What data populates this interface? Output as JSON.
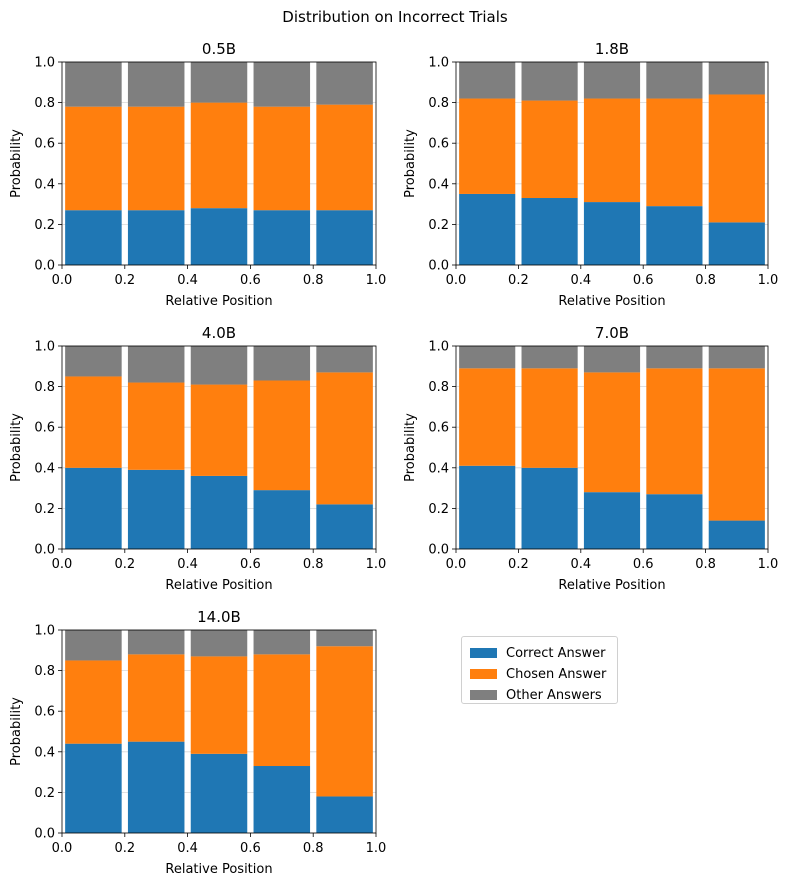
{
  "suptitle": "Distribution on Incorrect Trials",
  "colors": {
    "correct": "#1f77b4",
    "chosen": "#ff7f0e",
    "other": "#7f7f7f"
  },
  "legend": {
    "placement": "right of bottom-left panel",
    "entries": [
      {
        "label": "Correct Answer",
        "color_key": "correct"
      },
      {
        "label": "Chosen Answer",
        "color_key": "chosen"
      },
      {
        "label": "Other Answers",
        "color_key": "other"
      }
    ]
  },
  "chart_data": [
    {
      "type": "bar",
      "stacked": true,
      "title": "0.5B",
      "xlabel": "Relative Position",
      "ylabel": "Probability",
      "xlim": [
        0.0,
        1.0
      ],
      "ylim": [
        0.0,
        1.0
      ],
      "xticks": [
        "0.0",
        "0.2",
        "0.4",
        "0.6",
        "0.8",
        "1.0"
      ],
      "yticks": [
        "0.0",
        "0.2",
        "0.4",
        "0.6",
        "0.8",
        "1.0"
      ],
      "grid": "horizontal",
      "x": [
        0.1,
        0.3,
        0.5,
        0.7,
        0.9
      ],
      "series": [
        {
          "name": "Correct Answer",
          "values": [
            0.27,
            0.27,
            0.28,
            0.27,
            0.27
          ]
        },
        {
          "name": "Chosen Answer",
          "values": [
            0.51,
            0.51,
            0.52,
            0.51,
            0.52
          ]
        },
        {
          "name": "Other Answers",
          "values": [
            0.22,
            0.22,
            0.2,
            0.22,
            0.21
          ]
        }
      ]
    },
    {
      "type": "bar",
      "stacked": true,
      "title": "1.8B",
      "xlabel": "Relative Position",
      "ylabel": "Probability",
      "xlim": [
        0.0,
        1.0
      ],
      "ylim": [
        0.0,
        1.0
      ],
      "xticks": [
        "0.0",
        "0.2",
        "0.4",
        "0.6",
        "0.8",
        "1.0"
      ],
      "yticks": [
        "0.0",
        "0.2",
        "0.4",
        "0.6",
        "0.8",
        "1.0"
      ],
      "grid": "horizontal",
      "x": [
        0.1,
        0.3,
        0.5,
        0.7,
        0.9
      ],
      "series": [
        {
          "name": "Correct Answer",
          "values": [
            0.35,
            0.33,
            0.31,
            0.29,
            0.21
          ]
        },
        {
          "name": "Chosen Answer",
          "values": [
            0.47,
            0.48,
            0.51,
            0.53,
            0.63
          ]
        },
        {
          "name": "Other Answers",
          "values": [
            0.18,
            0.19,
            0.18,
            0.18,
            0.16
          ]
        }
      ]
    },
    {
      "type": "bar",
      "stacked": true,
      "title": "4.0B",
      "xlabel": "Relative Position",
      "ylabel": "Probability",
      "xlim": [
        0.0,
        1.0
      ],
      "ylim": [
        0.0,
        1.0
      ],
      "xticks": [
        "0.0",
        "0.2",
        "0.4",
        "0.6",
        "0.8",
        "1.0"
      ],
      "yticks": [
        "0.0",
        "0.2",
        "0.4",
        "0.6",
        "0.8",
        "1.0"
      ],
      "grid": "horizontal",
      "x": [
        0.1,
        0.3,
        0.5,
        0.7,
        0.9
      ],
      "series": [
        {
          "name": "Correct Answer",
          "values": [
            0.4,
            0.39,
            0.36,
            0.29,
            0.22
          ]
        },
        {
          "name": "Chosen Answer",
          "values": [
            0.45,
            0.43,
            0.45,
            0.54,
            0.65
          ]
        },
        {
          "name": "Other Answers",
          "values": [
            0.15,
            0.18,
            0.19,
            0.17,
            0.13
          ]
        }
      ]
    },
    {
      "type": "bar",
      "stacked": true,
      "title": "7.0B",
      "xlabel": "Relative Position",
      "ylabel": "Probability",
      "xlim": [
        0.0,
        1.0
      ],
      "ylim": [
        0.0,
        1.0
      ],
      "xticks": [
        "0.0",
        "0.2",
        "0.4",
        "0.6",
        "0.8",
        "1.0"
      ],
      "yticks": [
        "0.0",
        "0.2",
        "0.4",
        "0.6",
        "0.8",
        "1.0"
      ],
      "grid": "horizontal",
      "x": [
        0.1,
        0.3,
        0.5,
        0.7,
        0.9
      ],
      "series": [
        {
          "name": "Correct Answer",
          "values": [
            0.41,
            0.4,
            0.28,
            0.27,
            0.14
          ]
        },
        {
          "name": "Chosen Answer",
          "values": [
            0.48,
            0.49,
            0.59,
            0.62,
            0.75
          ]
        },
        {
          "name": "Other Answers",
          "values": [
            0.11,
            0.11,
            0.13,
            0.11,
            0.11
          ]
        }
      ]
    },
    {
      "type": "bar",
      "stacked": true,
      "title": "14.0B",
      "xlabel": "Relative Position",
      "ylabel": "Probability",
      "xlim": [
        0.0,
        1.0
      ],
      "ylim": [
        0.0,
        1.0
      ],
      "xticks": [
        "0.0",
        "0.2",
        "0.4",
        "0.6",
        "0.8",
        "1.0"
      ],
      "yticks": [
        "0.0",
        "0.2",
        "0.4",
        "0.6",
        "0.8",
        "1.0"
      ],
      "grid": "horizontal",
      "x": [
        0.1,
        0.3,
        0.5,
        0.7,
        0.9
      ],
      "series": [
        {
          "name": "Correct Answer",
          "values": [
            0.44,
            0.45,
            0.39,
            0.33,
            0.18
          ]
        },
        {
          "name": "Chosen Answer",
          "values": [
            0.41,
            0.43,
            0.48,
            0.55,
            0.74
          ]
        },
        {
          "name": "Other Answers",
          "values": [
            0.15,
            0.12,
            0.13,
            0.12,
            0.08
          ]
        }
      ]
    }
  ]
}
